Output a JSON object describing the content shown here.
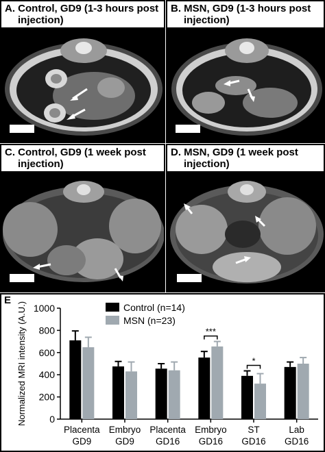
{
  "panels": [
    {
      "letter": "A.",
      "title_line1": "Control, GD9 (1-3 hours post",
      "title_line2": "injection)"
    },
    {
      "letter": "B.",
      "title_line1": "MSN, GD9 (1-3 hours post",
      "title_line2": "injection)"
    },
    {
      "letter": "C.",
      "title_line1": "Control, GD9 (1 week post",
      "title_line2": "injection)"
    },
    {
      "letter": "D.",
      "title_line1": "MSN, GD9 (1 week post",
      "title_line2": "injection)"
    }
  ],
  "panel_e_letter": "E",
  "colors": {
    "control": "#000000",
    "msn": "#a0a9b0"
  },
  "chart_data": {
    "type": "bar",
    "ylabel": "Normalized MRI intensity (A.U.)",
    "ylim": [
      0,
      1000
    ],
    "yticks": [
      0,
      200,
      400,
      600,
      800,
      1000
    ],
    "categories": [
      {
        "line1": "Placenta",
        "line2": "GD9"
      },
      {
        "line1": "Embryo",
        "line2": "GD9"
      },
      {
        "line1": "Placenta",
        "line2": "GD16"
      },
      {
        "line1": "Embryo",
        "line2": "GD16"
      },
      {
        "line1": "ST",
        "line2": "GD16"
      },
      {
        "line1": "Lab",
        "line2": "GD16"
      }
    ],
    "series": [
      {
        "name": "Control (n=14)",
        "values": [
          710,
          475,
          455,
          555,
          390,
          470
        ],
        "errors": [
          85,
          45,
          45,
          55,
          45,
          45
        ]
      },
      {
        "name": "MSN (n=23)",
        "values": [
          648,
          430,
          440,
          655,
          320,
          500
        ],
        "errors": [
          90,
          85,
          75,
          45,
          90,
          55
        ]
      }
    ],
    "significance": [
      {
        "category_index": 3,
        "label": "***"
      },
      {
        "category_index": 4,
        "label": "*"
      }
    ]
  }
}
